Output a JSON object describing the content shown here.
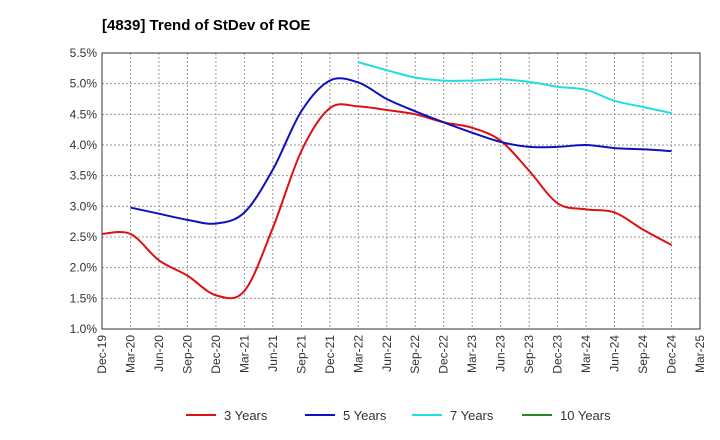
{
  "chart_data": {
    "type": "line",
    "title": "[4839]  Trend of StDev of ROE",
    "xlabel": "",
    "ylabel": "",
    "ylim": [
      1.0,
      5.5
    ],
    "yticks": [
      "1.0%",
      "1.5%",
      "2.0%",
      "2.5%",
      "3.0%",
      "3.5%",
      "4.0%",
      "4.5%",
      "5.0%",
      "5.5%"
    ],
    "ytick_values": [
      1.0,
      1.5,
      2.0,
      2.5,
      3.0,
      3.5,
      4.0,
      4.5,
      5.0,
      5.5
    ],
    "categories": [
      "Dec-19",
      "Mar-20",
      "Jun-20",
      "Sep-20",
      "Dec-20",
      "Mar-21",
      "Jun-21",
      "Sep-21",
      "Dec-21",
      "Mar-22",
      "Jun-22",
      "Sep-22",
      "Dec-22",
      "Mar-23",
      "Jun-23",
      "Sep-23",
      "Dec-23",
      "Mar-24",
      "Jun-24",
      "Sep-24",
      "Dec-24",
      "Mar-25"
    ],
    "grid": true,
    "legend_position": "bottom",
    "series": [
      {
        "name": "3 Years",
        "color": "#dd1111",
        "values": [
          2.55,
          2.55,
          2.12,
          1.87,
          1.55,
          1.62,
          2.65,
          3.9,
          4.6,
          4.63,
          4.57,
          4.5,
          4.37,
          4.28,
          4.07,
          3.58,
          3.05,
          2.95,
          2.9,
          2.62,
          2.37,
          null
        ]
      },
      {
        "name": "5 Years",
        "color": "#1111bb",
        "values": [
          null,
          2.98,
          2.88,
          2.78,
          2.72,
          2.9,
          3.6,
          4.55,
          5.05,
          5.02,
          4.75,
          4.55,
          4.37,
          4.2,
          4.05,
          3.97,
          3.97,
          4.0,
          3.95,
          3.93,
          3.9,
          null
        ]
      },
      {
        "name": "7 Years",
        "color": "#22dddd",
        "values": [
          null,
          null,
          null,
          null,
          null,
          null,
          null,
          null,
          null,
          5.35,
          5.22,
          5.1,
          5.05,
          5.05,
          5.07,
          5.03,
          4.95,
          4.9,
          4.72,
          4.62,
          4.52,
          null
        ]
      },
      {
        "name": "10 Years",
        "color": "#228822",
        "values": [
          null,
          null,
          null,
          null,
          null,
          null,
          null,
          null,
          null,
          null,
          null,
          null,
          null,
          null,
          null,
          null,
          null,
          null,
          null,
          null,
          null,
          null
        ]
      }
    ]
  }
}
